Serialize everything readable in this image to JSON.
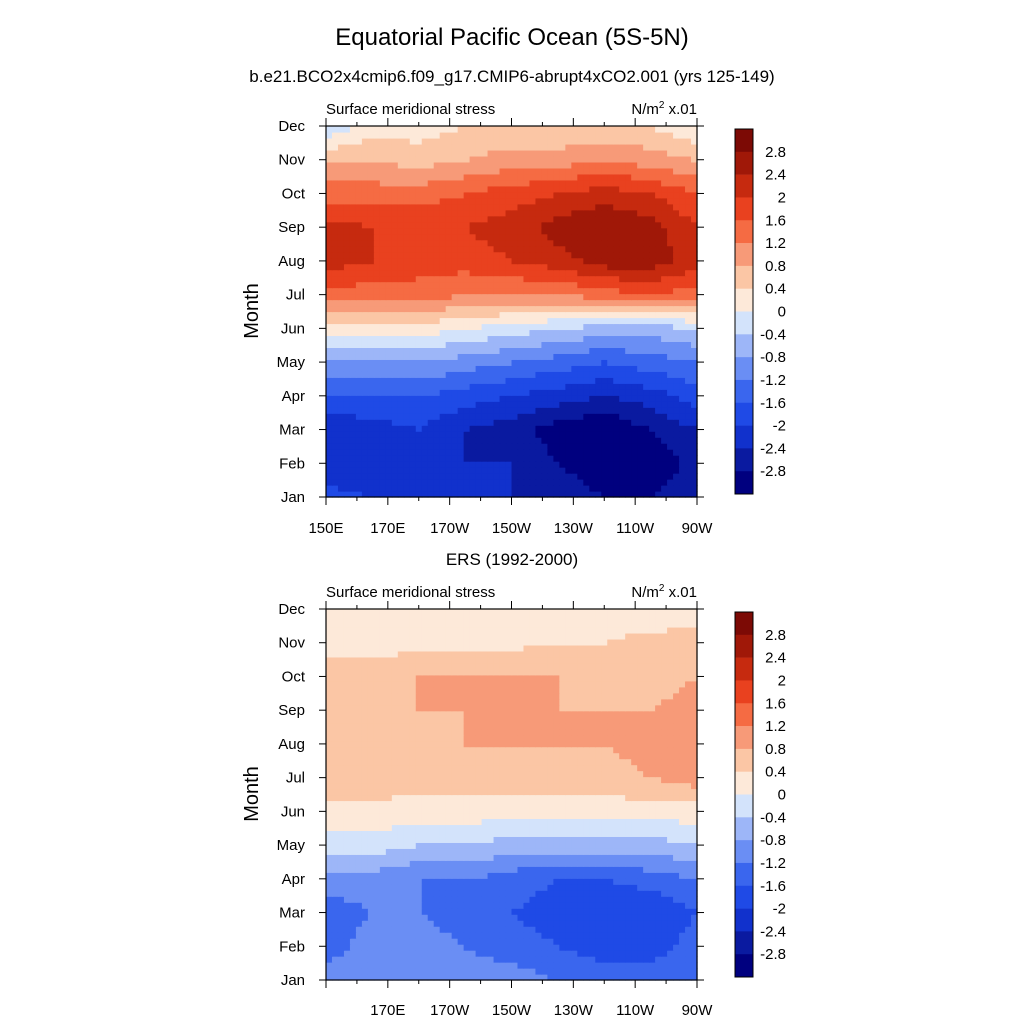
{
  "figure": {
    "title": "Equatorial Pacific Ocean (5S-5N)"
  },
  "chart_data": [
    {
      "type": "heatmap",
      "title": "b.e21.BCO2x4cmip6.f09_g17.CMIP6-abrupt4xCO2.001 (yrs 125-149)",
      "left_label": "Surface meridional stress",
      "units_base": "N/m",
      "units_exp": "2",
      "units_suffix": " x.01",
      "xlabel": "",
      "ylabel": "Month",
      "xticks": [
        "150E",
        "170E",
        "170W",
        "150W",
        "130W",
        "110W",
        "90W"
      ],
      "xlim": [
        150,
        270
      ],
      "months": [
        "Jan",
        "Feb",
        "Mar",
        "Apr",
        "May",
        "Jun",
        "Jul",
        "Aug",
        "Sep",
        "Oct",
        "Nov",
        "Dec"
      ],
      "colorbar": [
        "2.8",
        "2.4",
        "2",
        "1.6",
        "1.2",
        "0.8",
        "0.4",
        "0",
        "-0.4",
        "-0.8",
        "-1.2",
        "-1.6",
        "-2",
        "-2.4",
        "-2.8"
      ],
      "lon": [
        150,
        165,
        180,
        195,
        210,
        225,
        240,
        255,
        270
      ],
      "values": [
        [
          -1.8,
          -2.0,
          -2.0,
          -2.0,
          -2.4,
          -2.4,
          -2.8,
          -2.8,
          -2.4
        ],
        [
          -2.4,
          -2.4,
          -2.4,
          -2.4,
          -2.4,
          -2.8,
          -3.2,
          -3.2,
          -2.6
        ],
        [
          -2.4,
          -2.2,
          -2.0,
          -2.4,
          -2.6,
          -3.0,
          -3.2,
          -2.8,
          -2.4
        ],
        [
          -1.6,
          -1.6,
          -1.6,
          -1.8,
          -2.0,
          -2.2,
          -2.4,
          -2.2,
          -1.8
        ],
        [
          -0.8,
          -0.8,
          -0.8,
          -1.0,
          -1.2,
          -1.4,
          -1.6,
          -1.4,
          -1.2
        ],
        [
          0.2,
          0.2,
          0.2,
          0.0,
          -0.2,
          -0.4,
          -0.6,
          -0.6,
          -0.4
        ],
        [
          1.4,
          1.4,
          1.4,
          1.2,
          1.2,
          1.2,
          1.4,
          1.6,
          1.4
        ],
        [
          2.2,
          2.0,
          1.8,
          1.8,
          2.0,
          2.2,
          2.6,
          2.6,
          2.2
        ],
        [
          2.2,
          2.0,
          2.0,
          2.0,
          2.2,
          2.6,
          2.8,
          2.6,
          2.0
        ],
        [
          1.4,
          1.4,
          1.4,
          1.6,
          1.8,
          2.0,
          2.2,
          2.0,
          1.6
        ],
        [
          0.8,
          0.8,
          0.6,
          0.8,
          1.0,
          1.0,
          1.2,
          1.0,
          0.8
        ],
        [
          -0.4,
          0.2,
          0.2,
          0.4,
          0.4,
          0.4,
          0.4,
          0.4,
          0.0
        ]
      ]
    },
    {
      "type": "heatmap",
      "title": "ERS (1992-2000)",
      "left_label": "Surface meridional stress",
      "units_base": "N/m",
      "units_exp": "2",
      "units_suffix": " x.01",
      "xlabel": "",
      "ylabel": "Month",
      "xticks": [
        "170E",
        "170W",
        "150W",
        "130W",
        "110W",
        "90W"
      ],
      "xlim": [
        150,
        270
      ],
      "months": [
        "Jan",
        "Feb",
        "Mar",
        "Apr",
        "May",
        "Jun",
        "Jul",
        "Aug",
        "Sep",
        "Oct",
        "Nov",
        "Dec"
      ],
      "colorbar": [
        "2.8",
        "2.4",
        "2",
        "1.6",
        "1.2",
        "0.8",
        "0.4",
        "0",
        "-0.4",
        "-0.8",
        "-1.2",
        "-1.6",
        "-2",
        "-2.4",
        "-2.8"
      ],
      "lon": [
        150,
        165,
        180,
        195,
        210,
        225,
        240,
        255,
        270
      ],
      "values": [
        [
          -1.0,
          -0.8,
          -0.8,
          -1.0,
          -1.0,
          -1.2,
          -1.4,
          -1.4,
          -1.2
        ],
        [
          -1.4,
          -1.0,
          -1.0,
          -1.2,
          -1.4,
          -1.6,
          -1.8,
          -1.8,
          -1.4
        ],
        [
          -1.4,
          -1.2,
          -1.2,
          -1.4,
          -1.6,
          -1.8,
          -2.0,
          -2.0,
          -1.6
        ],
        [
          -1.0,
          -1.0,
          -1.2,
          -1.2,
          -1.4,
          -1.6,
          -1.6,
          -1.4,
          -1.2
        ],
        [
          -0.2,
          -0.2,
          -0.4,
          -0.4,
          -0.6,
          -0.6,
          -0.6,
          -0.6,
          -0.4
        ],
        [
          0.3,
          0.3,
          0.2,
          0.2,
          0.2,
          0.2,
          0.2,
          0.2,
          0.2
        ],
        [
          0.6,
          0.6,
          0.6,
          0.6,
          0.6,
          0.6,
          0.6,
          0.8,
          1.0
        ],
        [
          0.6,
          0.6,
          0.6,
          0.8,
          0.8,
          0.8,
          0.8,
          1.0,
          1.0
        ],
        [
          0.8,
          0.8,
          0.8,
          0.8,
          0.8,
          0.8,
          0.8,
          0.8,
          1.0
        ],
        [
          0.6,
          0.6,
          0.8,
          0.8,
          0.8,
          0.8,
          0.6,
          0.6,
          0.8
        ],
        [
          0.2,
          0.2,
          0.3,
          0.3,
          0.3,
          0.4,
          0.4,
          0.5,
          0.5
        ],
        [
          0.2,
          0.1,
          0.0,
          0.0,
          0.2,
          0.3,
          0.2,
          0.2,
          0.3
        ]
      ]
    }
  ],
  "colors": {
    "palette": [
      "#00007f",
      "#0a1aa0",
      "#1131cc",
      "#1f4ae6",
      "#3a66ee",
      "#6a8ef4",
      "#9db6f8",
      "#d3e3fb",
      "#fde9d9",
      "#fbc6a5",
      "#f79a78",
      "#f56b43",
      "#e9411f",
      "#c62a0f",
      "#a01808",
      "#7c0a05"
    ],
    "levels": [
      -2.8,
      -2.4,
      -2.0,
      -1.6,
      -1.2,
      -0.8,
      -0.4,
      0,
      0.4,
      0.8,
      1.2,
      1.6,
      2.0,
      2.4,
      2.8
    ]
  }
}
